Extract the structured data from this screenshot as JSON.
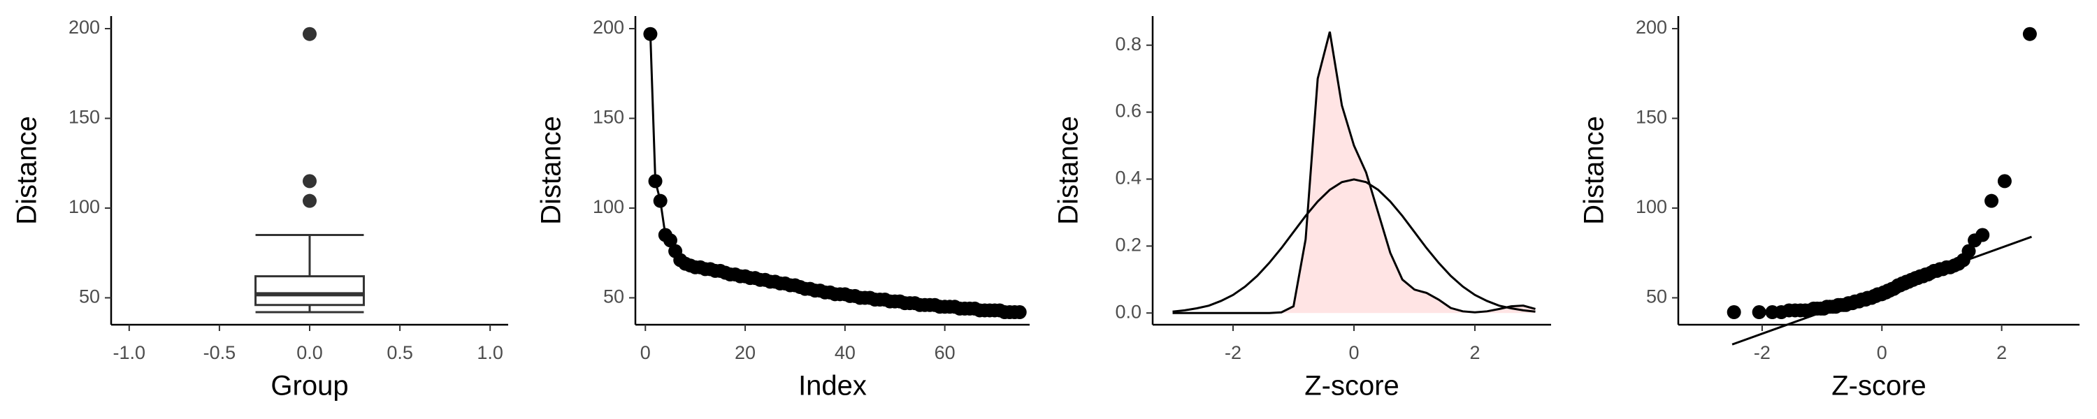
{
  "chart_data": [
    {
      "type": "box",
      "x_label": "Group",
      "y_label": "Distance",
      "color": "#333333",
      "fill": "#ffffff",
      "x": 0,
      "stats": {
        "min": 42,
        "q1": 46,
        "median": 52,
        "q3": 62,
        "max": 85
      },
      "outliers": [
        104,
        115,
        197
      ],
      "xlim": [
        -1.1,
        1.1
      ],
      "xticks": [
        {
          "value": -1,
          "label": "-1.0"
        },
        -0.5,
        {
          "value": 0,
          "label": "0.0"
        },
        0.5,
        {
          "value": 1,
          "label": "1.0"
        }
      ],
      "ylim": [
        35,
        207
      ],
      "yticks": [
        50,
        100,
        150,
        200
      ]
    },
    {
      "type": "line",
      "x_label": "Index",
      "y_label": "Distance",
      "color": "#000000",
      "x": [
        1,
        2,
        3,
        4,
        5,
        6,
        7,
        8,
        9,
        10,
        11,
        12,
        13,
        14,
        15,
        16,
        17,
        18,
        19,
        20,
        21,
        22,
        23,
        24,
        25,
        26,
        27,
        28,
        29,
        30,
        31,
        32,
        33,
        34,
        35,
        36,
        37,
        38,
        39,
        40,
        41,
        42,
        43,
        44,
        45,
        46,
        47,
        48,
        49,
        50,
        51,
        52,
        53,
        54,
        55,
        56,
        57,
        58,
        59,
        60,
        61,
        62,
        63,
        64,
        65,
        66,
        67,
        68,
        69,
        70,
        71,
        72,
        73,
        74,
        75
      ],
      "values": [
        197,
        115,
        104,
        85,
        82,
        76,
        71,
        69,
        68,
        67,
        67,
        66,
        66,
        65,
        65,
        64,
        63,
        63,
        62,
        62,
        61,
        61,
        60,
        60,
        59,
        59,
        58,
        58,
        57,
        57,
        56,
        55,
        55,
        54,
        54,
        53,
        53,
        52,
        52,
        52,
        51,
        51,
        50,
        50,
        50,
        49,
        49,
        49,
        48,
        48,
        48,
        47,
        47,
        47,
        46,
        46,
        46,
        46,
        45,
        45,
        45,
        45,
        44,
        44,
        44,
        44,
        43,
        43,
        43,
        43,
        43,
        42,
        42,
        42,
        42
      ],
      "xlim": [
        -2,
        77
      ],
      "xticks": [
        0,
        20,
        40,
        60
      ],
      "ylim": [
        35,
        207
      ],
      "yticks": [
        50,
        100,
        150,
        200
      ]
    },
    {
      "type": "density",
      "x_label": "Z-score",
      "y_label": "Distance",
      "x": [
        -3,
        -2.8,
        -2.6,
        -2.4,
        -2.2,
        -2,
        -1.8,
        -1.6,
        -1.4,
        -1.2,
        -1,
        -0.8,
        -0.6,
        -0.4,
        -0.2,
        0,
        0.2,
        0.4,
        0.6,
        0.8,
        1,
        1.2,
        1.4,
        1.6,
        1.8,
        2,
        2.2,
        2.4,
        2.6,
        2.8,
        3
      ],
      "series": [
        {
          "color": "#000000",
          "fill": "#ffe4e4",
          "values": [
            0,
            0,
            0,
            0,
            0,
            0,
            0,
            0,
            0,
            0.002,
            0.02,
            0.22,
            0.7,
            0.84,
            0.62,
            0.5,
            0.42,
            0.3,
            0.18,
            0.1,
            0.07,
            0.06,
            0.04,
            0.015,
            0.005,
            0.002,
            0.005,
            0.012,
            0.02,
            0.022,
            0.012
          ]
        },
        {
          "color": "#000000",
          "values": [
            0.004,
            0.008,
            0.014,
            0.022,
            0.036,
            0.054,
            0.079,
            0.111,
            0.15,
            0.194,
            0.242,
            0.29,
            0.333,
            0.368,
            0.391,
            0.399,
            0.391,
            0.368,
            0.333,
            0.29,
            0.242,
            0.194,
            0.15,
            0.111,
            0.079,
            0.054,
            0.036,
            0.022,
            0.014,
            0.008,
            0.004
          ]
        }
      ],
      "xlim": [
        -3.33,
        3.26
      ],
      "xticks": [
        -2,
        0,
        2
      ],
      "ylim": [
        -0.035,
        0.887
      ],
      "yticks": [
        {
          "value": 0,
          "label": "0.0"
        },
        0.2,
        0.4,
        0.6,
        0.8
      ]
    },
    {
      "type": "qq",
      "x_label": "Z-score",
      "y_label": "Distance",
      "color": "#000000",
      "x": [
        -2.47,
        -2.05,
        -1.83,
        -1.68,
        -1.55,
        -1.45,
        -1.36,
        -1.28,
        -1.21,
        -1.14,
        -1.08,
        -1.02,
        -0.97,
        -0.92,
        -0.87,
        -0.82,
        -0.77,
        -0.73,
        -0.69,
        -0.64,
        -0.6,
        -0.56,
        -0.52,
        -0.49,
        -0.45,
        -0.41,
        -0.38,
        -0.34,
        -0.31,
        -0.27,
        -0.24,
        -0.2,
        -0.17,
        -0.13,
        -0.1,
        -0.07,
        -0.03,
        0,
        0.03,
        0.07,
        0.1,
        0.13,
        0.17,
        0.2,
        0.24,
        0.27,
        0.31,
        0.34,
        0.38,
        0.41,
        0.45,
        0.49,
        0.52,
        0.56,
        0.6,
        0.64,
        0.69,
        0.73,
        0.77,
        0.82,
        0.87,
        0.92,
        0.97,
        1.02,
        1.08,
        1.14,
        1.21,
        1.28,
        1.36,
        1.45,
        1.55,
        1.68,
        1.83,
        2.05,
        2.47
      ],
      "values": [
        42,
        42,
        42,
        42,
        43,
        43,
        43,
        43,
        43,
        44,
        44,
        44,
        44,
        45,
        45,
        45,
        45,
        46,
        46,
        46,
        46,
        47,
        47,
        47,
        48,
        48,
        48,
        49,
        49,
        49,
        50,
        50,
        50,
        51,
        51,
        52,
        52,
        52,
        53,
        53,
        54,
        54,
        55,
        55,
        56,
        57,
        57,
        58,
        58,
        59,
        59,
        60,
        60,
        61,
        61,
        62,
        62,
        63,
        63,
        64,
        65,
        65,
        66,
        66,
        67,
        67,
        68,
        69,
        71,
        76,
        82,
        85,
        104,
        115,
        197
      ],
      "reference_line": {
        "x": [
          -2.5,
          2.5
        ],
        "values": [
          24,
          84
        ]
      },
      "xlim": [
        -3.4,
        3.3
      ],
      "xticks": [
        -2,
        0,
        2
      ],
      "ylim": [
        35,
        207
      ],
      "yticks": [
        50,
        100,
        150,
        200
      ]
    }
  ]
}
